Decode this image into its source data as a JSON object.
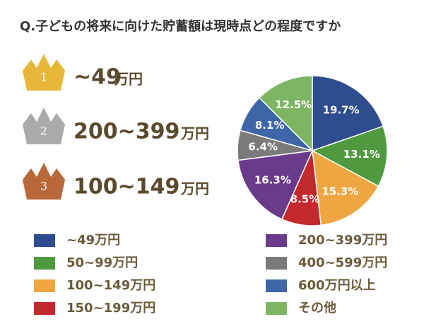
{
  "title": "Q.子どもの将来に向けた貯蓄額は現時点どの程度ですか",
  "rankings": [
    {
      "rank": "1",
      "amount": "~49",
      "unit": "万円"
    },
    {
      "rank": "2",
      "amount": "200~399",
      "unit": "万円"
    },
    {
      "rank": "3",
      "amount": "100~149",
      "unit": "万円"
    }
  ],
  "chart_data": {
    "type": "pie",
    "categories": [
      "~49万円",
      "50~99万円",
      "100~149万円",
      "150~199万円",
      "200~399万円",
      "400~599万円",
      "600万円以上",
      "その他"
    ],
    "values": [
      19.7,
      13.1,
      15.3,
      8.5,
      16.3,
      6.4,
      8.1,
      12.5
    ],
    "value_labels": [
      "19.7%",
      "13.1%",
      "15.3%",
      "8.5%",
      "16.3%",
      "6.4%",
      "8.1%",
      "12.5%"
    ],
    "colors": [
      "#2d4d8e",
      "#4f9a3f",
      "#efa640",
      "#c2282d",
      "#6b3b8b",
      "#7a7a7a",
      "#3f66a9",
      "#7cb662"
    ]
  }
}
